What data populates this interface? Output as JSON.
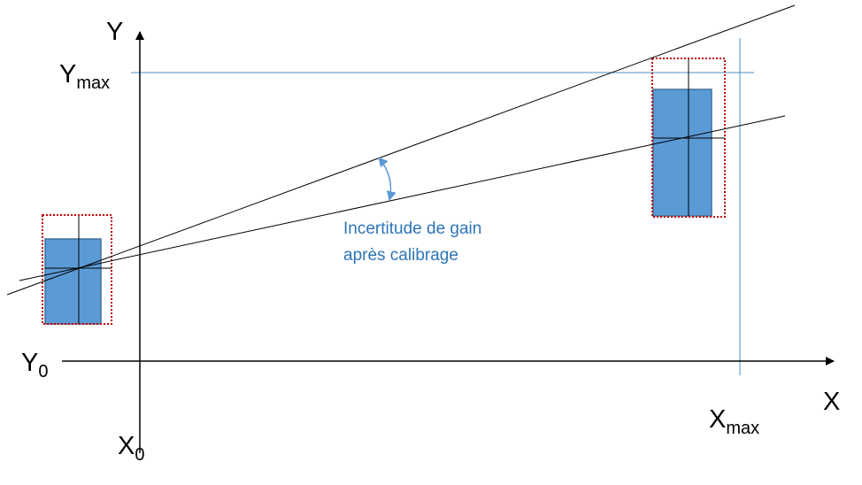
{
  "colors": {
    "axis": "#000000",
    "fit_line": "#000000",
    "guide_line": "#4a90c8",
    "error_box_fill": "#5b9bd5",
    "error_box_stroke": "#41719c",
    "tolerance_box": "#c00000",
    "annotation": "#2e75b6"
  },
  "axes": {
    "y_label": "Y",
    "x_label": "X",
    "y_max": {
      "main": "Y",
      "sub": "max"
    },
    "y_zero": {
      "main": "Y",
      "sub": "0"
    },
    "x_zero": {
      "main": "X",
      "sub": "0"
    },
    "x_max": {
      "main": "X",
      "sub": "max"
    }
  },
  "annotation": {
    "line1": "Incertitude de gain",
    "line2": "après calibrage"
  },
  "icons": {
    "angle_marker": "double-headed-arc-arrow-icon"
  }
}
